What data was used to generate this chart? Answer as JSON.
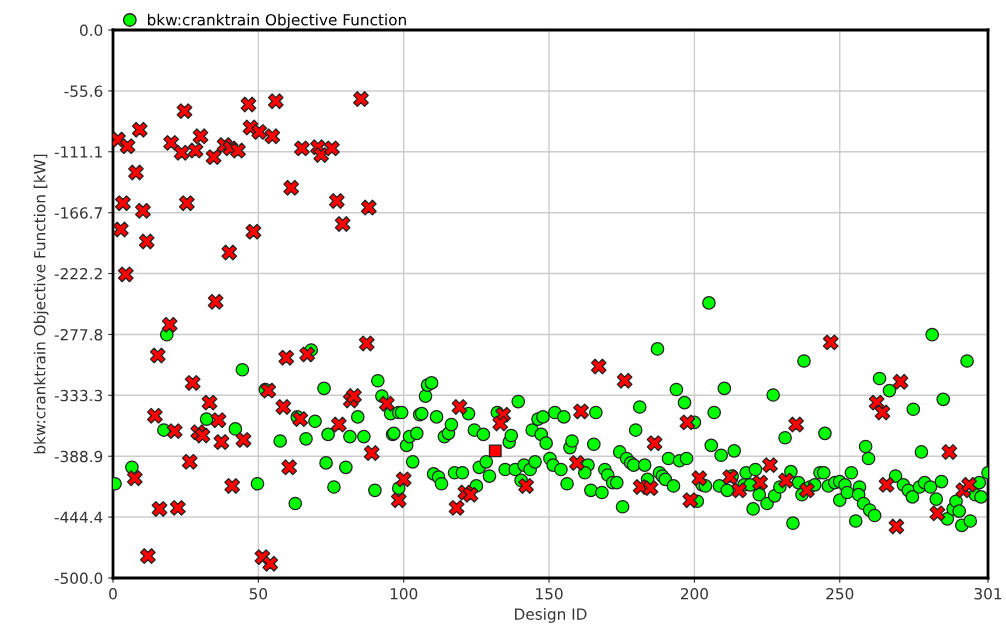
{
  "chart_data": {
    "type": "scatter",
    "xlabel": "Design ID",
    "ylabel": "bkw:cranktrain Objective Function [kW]",
    "xlim": [
      0,
      301
    ],
    "ylim": [
      -500,
      0
    ],
    "xticks": [
      0,
      50,
      100,
      150,
      200,
      250,
      301
    ],
    "yticks": [
      {
        "value": 0,
        "label": "0.0"
      },
      -55.6,
      -111.1,
      -166.7,
      -222.2,
      -277.8,
      -333.3,
      -388.9,
      -444.4,
      {
        "value": -500,
        "label": "-500.0"
      }
    ],
    "grid": true,
    "legend": "top left",
    "series": [
      {
        "name": "bkw:cranktrain Objective Function",
        "color": "#00ff00",
        "marker": "circle",
        "x": [
          0.7,
          6.5,
          18.5,
          17.5,
          32.2,
          42.1,
          44.5,
          49.7,
          52.4,
          57.5,
          62.7,
          63.4,
          66.4,
          68.2,
          69.5,
          72.6,
          74,
          73.3,
          76,
          80.1,
          81.5,
          84.2,
          86.3,
          90.1,
          91.1,
          92.5,
          95.5,
          96.2,
          98.3,
          98.3,
          99.3,
          96.6,
          101,
          102,
          104.5,
          103.1,
          105.5,
          106.2,
          107.5,
          108.2,
          109.6,
          111.3,
          110.3,
          112,
          113,
          114,
          115.4,
          116.4,
          117.5,
          120.2,
          122.3,
          124.3,
          127.4,
          126,
          128.4,
          129.5,
          125,
          132.2,
          136.3,
          137,
          139.4,
          134.9,
          138.4,
          140.4,
          141.4,
          143.5,
          145.2,
          144.2,
          146.2,
          147.9,
          147.3,
          149,
          150.3,
          151.4,
          154.1,
          152,
          155.1,
          156.2,
          157.2,
          157.9,
          163.4,
          162.3,
          165.4,
          166.1,
          164.4,
          168.2,
          169.2,
          170.2,
          171.9,
          173.3,
          174.3,
          176.7,
          178.1,
          179.1,
          182.9,
          183.9,
          179.8,
          181.2,
          175.3,
          187.3,
          191.1,
          194.9,
          197.3,
          193.8,
          196.6,
          200,
          188,
          189,
          190,
          192.8,
          201,
          205,
          202.7,
          210.3,
          206.8,
          205.8,
          209.2,
          213.7,
          227.1,
          231.2,
          237.7,
          244.9,
          263.7,
          267.1,
          275.3,
          285.6,
          281.8,
          293.8,
          258.9,
          259.9,
          278.1,
          301,
          233.9,
          220.2,
          203.8,
          208.6,
          211.3,
          213,
          217.1,
          217.8,
          219.2,
          221,
          222.3,
          225,
          227.6,
          229.4,
          233.2,
          235.8,
          237,
          239.7,
          241.4,
          243.2,
          244.5,
          246.1,
          248.3,
          250,
          251.8,
          250,
          252.6,
          254,
          256.8,
          256.5,
          258.2,
          260.3,
          262,
          269.2,
          271.9,
          273.6,
          275,
          277.4,
          279.2,
          281.2,
          285,
          283.2,
          287,
          289,
          290,
          291.1,
          292,
          294.9,
          296.6,
          298,
          298.6,
          255.5
        ],
        "values": [
          -414,
          -399,
          -278,
          -365,
          -355,
          -364,
          -310,
          -414,
          -328,
          -375,
          -432,
          -353,
          -373,
          -292,
          -357,
          -327,
          -369,
          -395,
          -417,
          -399,
          -371,
          -353,
          -371,
          -420,
          -320,
          -334,
          -350,
          -369,
          -418,
          -349,
          -349,
          -368,
          -379,
          -371,
          -368,
          -394,
          -351,
          -350,
          -334,
          -324,
          -322,
          -353,
          -405,
          -408,
          -414,
          -371,
          -368,
          -360,
          -404,
          -404,
          -350,
          -365,
          -369,
          -399,
          -394,
          -407,
          -416,
          -349,
          -376,
          -370,
          -339,
          -401,
          -401,
          -411,
          -397,
          -401,
          -394,
          -365,
          -355,
          -353,
          -369,
          -377,
          -391,
          -397,
          -401,
          -349,
          -353,
          -414,
          -381,
          -375,
          -397,
          -404,
          -378,
          -349,
          -420,
          -422,
          -401,
          -406,
          -413,
          -413,
          -385,
          -391,
          -395,
          -397,
          -397,
          -410,
          -365,
          -344,
          -435,
          -291,
          -391,
          -393,
          -391,
          -328,
          -340,
          -358,
          -404,
          -407,
          -410,
          -416,
          -430,
          -249,
          -415,
          -327,
          -349,
          -379,
          -388,
          -384,
          -333,
          -372,
          -302,
          -368,
          -318,
          -329,
          -346,
          -337,
          -278,
          -302,
          -380,
          -391,
          -385,
          -404,
          -450,
          -437,
          -416,
          -416,
          -420,
          -407,
          -415,
          -404,
          -415,
          -401,
          -424,
          -432,
          -425,
          -417,
          -403,
          -413,
          -424,
          -417,
          -415,
          -404,
          -404,
          -416,
          -413,
          -412,
          -415,
          -429,
          -422,
          -404,
          -417,
          -424,
          -432,
          -438,
          -443,
          -407,
          -415,
          -420,
          -426,
          -417,
          -413,
          -417,
          -412,
          -428,
          -446,
          -437,
          -430,
          -439,
          -452,
          -448,
          -424,
          -413,
          -426,
          -448
        ]
      },
      {
        "color": "#ff0000",
        "marker": "cross",
        "x": [
          1.7,
          5,
          9.2,
          7.9,
          2.7,
          3.4,
          10.3,
          11.6,
          4.4,
          12,
          20,
          23.6,
          24.6,
          25.4,
          28.4,
          30.1,
          34.6,
          38.4,
          40.4,
          43,
          46.6,
          47.3,
          50.3,
          54.8,
          56,
          48.3,
          40,
          35.3,
          61.3,
          65,
          70.5,
          71.6,
          75.3,
          77,
          79,
          85.3,
          88,
          19.5,
          15.4,
          27.4,
          14.4,
          21.2,
          26.4,
          29.3,
          30.8,
          33.2,
          36.3,
          37.3,
          41,
          44.9,
          7.5,
          16,
          22.3,
          51.4,
          54.1,
          53.4,
          59.6,
          58.6,
          60.6,
          64.4,
          66.8,
          77.7,
          81.8,
          82.9,
          87.3,
          89,
          94.2,
          98.3,
          100,
          119.2,
          121.2,
          123,
          118.2,
          134.2,
          133.2,
          142.1,
          161,
          159.6,
          167.1,
          176,
          186.3,
          181.5,
          184.9,
          197.6,
          201.7,
          198.6,
          215.4,
          222.6,
          226,
          231.5,
          238.7,
          235,
          246.9,
          262.7,
          264.7,
          270.9,
          266.1,
          269.5,
          283.6,
          287.7,
          292.5,
          294.5,
          212.3
        ],
        "values": [
          -100,
          -106,
          -91,
          -130,
          -182,
          -158,
          -165,
          -193,
          -223,
          -480,
          -103,
          -112,
          -74,
          -158,
          -110,
          -97,
          -116,
          -105,
          -108,
          -110,
          -68,
          -89,
          -93,
          -97,
          -65,
          -184,
          -203,
          -248,
          -144,
          -108,
          -107,
          -114,
          -108,
          -156,
          -177,
          -63,
          -162,
          -269,
          -297,
          -322,
          -352,
          -366,
          -394,
          -367,
          -370,
          -340,
          -356,
          -376,
          -416,
          -374,
          -409,
          -437,
          -436,
          -481,
          -487,
          -329,
          -299,
          -344,
          -399,
          -355,
          -296,
          -360,
          -338,
          -334,
          -286,
          -386,
          -341,
          -429,
          -410,
          -344,
          -422,
          -424,
          -436,
          -351,
          -359,
          -416,
          -348,
          -395,
          -307,
          -320,
          -377,
          -417,
          -418,
          -358,
          -409,
          -429,
          -420,
          -413,
          -397,
          -411,
          -420,
          -360,
          -285,
          -340,
          -349,
          -321,
          -415,
          -453,
          -441,
          -385,
          -420,
          -415,
          -408
        ]
      },
      {
        "color": "#ff0000",
        "marker": "square",
        "x": [
          131.5
        ],
        "values": [
          -384
        ]
      }
    ]
  }
}
